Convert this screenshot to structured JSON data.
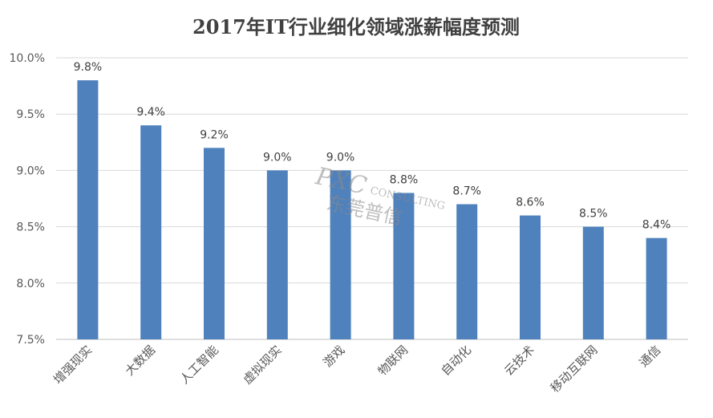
{
  "chart_data": {
    "type": "bar",
    "title": "2017年IT行业细化领域涨薪幅度预测",
    "xlabel": "",
    "ylabel": "",
    "categories": [
      "增强现实",
      "大数据",
      "人工智能",
      "虚拟现实",
      "游戏",
      "物联网",
      "自动化",
      "云技术",
      "移动互联网",
      "通信"
    ],
    "values": [
      9.8,
      9.4,
      9.2,
      9.0,
      9.0,
      8.8,
      8.7,
      8.6,
      8.5,
      8.4
    ],
    "data_labels": [
      "9.8%",
      "9.4%",
      "9.2%",
      "9.0%",
      "9.0%",
      "8.8%",
      "8.7%",
      "8.6%",
      "8.5%",
      "8.4%"
    ],
    "ylim": [
      7.5,
      10.0
    ],
    "yticks": [
      7.5,
      8.0,
      8.5,
      9.0,
      9.5,
      10.0
    ],
    "ytick_labels": [
      "7.5%",
      "8.0%",
      "8.5%",
      "9.0%",
      "9.5%",
      "10.0%"
    ],
    "grid": true,
    "legend": "none",
    "bar_color": "#4f81bd"
  },
  "watermark": {
    "logo": "PXC",
    "sub": "CONSULTING",
    "cn": "东莞普信"
  }
}
